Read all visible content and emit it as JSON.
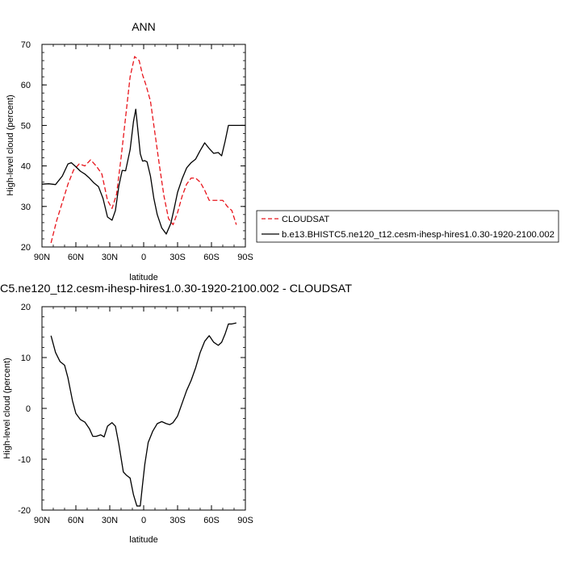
{
  "chart_data": [
    {
      "type": "line",
      "title": "ANN",
      "xlabel": "latitude",
      "ylabel": "High-level cloud (percent)",
      "xlim": [
        90,
        -90
      ],
      "ylim": [
        20,
        70
      ],
      "xticks": [
        90,
        60,
        30,
        0,
        -30,
        -60,
        -90
      ],
      "xtick_labels": [
        "90N",
        "60N",
        "30N",
        "0",
        "30S",
        "60S",
        "90S"
      ],
      "yticks": [
        20,
        30,
        40,
        50,
        60,
        70
      ],
      "ytick_labels": [
        "20",
        "30",
        "40",
        "50",
        "60",
        "70"
      ],
      "legend_position": "right",
      "series": [
        {
          "name": "CLOUDSAT",
          "color": "#e8141b",
          "dash": "dashed",
          "x": [
            82,
            77,
            72,
            67,
            62,
            57,
            52,
            47,
            42,
            37,
            32,
            28,
            24,
            20,
            16,
            12,
            8,
            4,
            1,
            -2,
            -6,
            -10,
            -14,
            -18,
            -22,
            -26,
            -30,
            -34,
            -38,
            -42,
            -46,
            -50,
            -54,
            -58,
            -62,
            -66,
            -70,
            -74,
            -78,
            -82
          ],
          "y": [
            21,
            26.5,
            31,
            35.5,
            39,
            40.5,
            40,
            41.5,
            40,
            38,
            31.5,
            29.5,
            33,
            42,
            52,
            62,
            67,
            66,
            62.5,
            60,
            56,
            48,
            40,
            32.5,
            27,
            25.5,
            28.5,
            32.5,
            35.5,
            37,
            37,
            36,
            34,
            31.5,
            31.5,
            31.5,
            31.5,
            30,
            29,
            25.5
          ]
        },
        {
          "name": "b.e13.BHISTC5.ne120_t12.cesm-ihesp-hires1.0.30-1920-2100.002",
          "color": "#000000",
          "dash": "solid",
          "x": [
            90,
            84,
            78,
            72,
            67,
            64,
            60,
            56,
            52,
            48,
            44,
            40,
            36,
            32,
            28,
            25,
            22,
            19,
            16,
            12,
            9,
            7,
            5,
            3,
            1,
            -1,
            -3,
            -6,
            -9,
            -12,
            -16,
            -20,
            -24,
            -27,
            -30,
            -34,
            -38,
            -42,
            -46,
            -50,
            -54,
            -58,
            -62,
            -66,
            -69,
            -72,
            -75,
            -78,
            -81,
            -84,
            -87,
            -90
          ],
          "y": [
            35.5,
            35.6,
            35.4,
            37.5,
            40.5,
            40.8,
            39.8,
            38.7,
            38,
            37,
            35.8,
            34.9,
            32,
            27.4,
            26.6,
            29,
            35,
            38.9,
            38.8,
            44,
            51,
            54,
            48.5,
            43,
            41.2,
            41.3,
            41,
            37.5,
            32,
            28,
            24.7,
            23.2,
            25.8,
            29.5,
            33.5,
            36.8,
            39.5,
            40.8,
            41.7,
            43.8,
            45.7,
            44.3,
            43.1,
            43.3,
            42.5,
            46,
            50,
            50,
            50,
            50,
            50,
            50
          ]
        }
      ]
    },
    {
      "type": "line",
      "title": "C5.ne120_t12.cesm-ihesp-hires1.0.30-1920-2100.002 - CLOUDSAT",
      "xlabel": "latitude",
      "ylabel": "High-level cloud (percent)",
      "xlim": [
        90,
        -90
      ],
      "ylim": [
        -20,
        20
      ],
      "xticks": [
        90,
        60,
        30,
        0,
        -30,
        -60,
        -90
      ],
      "xtick_labels": [
        "90N",
        "60N",
        "30N",
        "0",
        "30S",
        "60S",
        "90S"
      ],
      "yticks": [
        -20,
        -10,
        0,
        10,
        20
      ],
      "ytick_labels": [
        "-20",
        "-10",
        "0",
        "10",
        "20"
      ],
      "series": [
        {
          "color": "#000000",
          "dash": "solid",
          "x": [
            82,
            78,
            74,
            70,
            67,
            63,
            60,
            56,
            52,
            48,
            45,
            42,
            38,
            35,
            32,
            28,
            25,
            22,
            18,
            15,
            12,
            9,
            6,
            3,
            1,
            -1,
            -4,
            -8,
            -12,
            -16,
            -20,
            -23,
            -26,
            -30,
            -34,
            -38,
            -42,
            -46,
            -50,
            -54,
            -58,
            -62,
            -66,
            -69,
            -72,
            -75,
            -78,
            -82
          ],
          "y": [
            14.3,
            11,
            9.2,
            8.5,
            6,
            1.5,
            -1,
            -2.2,
            -2.7,
            -4,
            -5.5,
            -5.5,
            -5.2,
            -5.6,
            -3.5,
            -2.8,
            -3.5,
            -7,
            -12.5,
            -13.2,
            -13.7,
            -17,
            -19.2,
            -19.2,
            -15,
            -11,
            -6.7,
            -4.5,
            -3,
            -2.6,
            -3,
            -3.2,
            -2.8,
            -1.5,
            1,
            3.5,
            5.5,
            8,
            11,
            13.2,
            14.3,
            13,
            12.4,
            13,
            14.6,
            16.6,
            16.6,
            16.8
          ]
        }
      ]
    }
  ]
}
